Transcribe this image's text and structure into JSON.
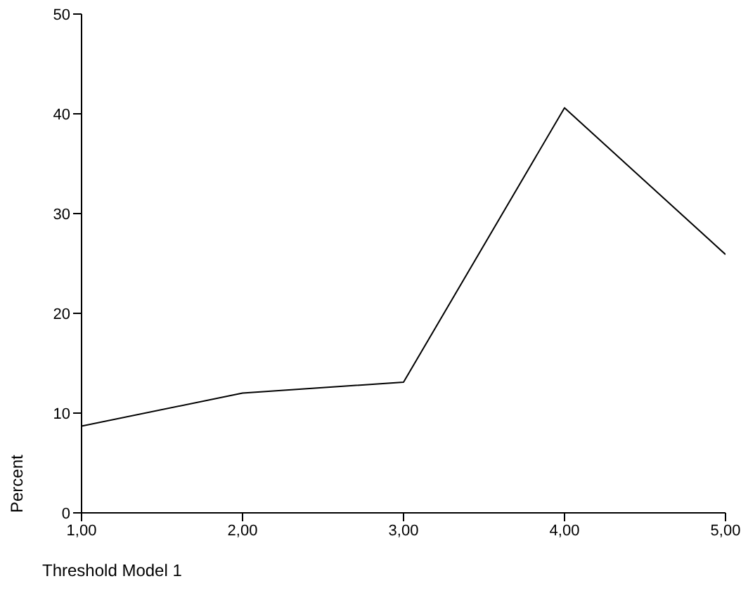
{
  "chart_data": {
    "type": "line",
    "xlabel": "Threshold Model 1",
    "ylabel": "Percent",
    "x": [
      1,
      2,
      3,
      4,
      5
    ],
    "series": [
      {
        "color": "#000000",
        "values": [
          8.7,
          12.0,
          13.1,
          40.6,
          25.9
        ]
      }
    ],
    "xlim": [
      1,
      5
    ],
    "xticks": [
      {
        "value": 1,
        "label": "1,00"
      },
      {
        "value": 2,
        "label": "2,00"
      },
      {
        "value": 3,
        "label": "3,00"
      },
      {
        "value": 4,
        "label": "4,00"
      },
      {
        "value": 5,
        "label": "5,00"
      }
    ],
    "ylim": [
      0,
      50
    ],
    "yticks": [
      0,
      10,
      20,
      30,
      40,
      50
    ],
    "grid": false,
    "legend": false,
    "marker": "none",
    "line_style": "solid"
  }
}
